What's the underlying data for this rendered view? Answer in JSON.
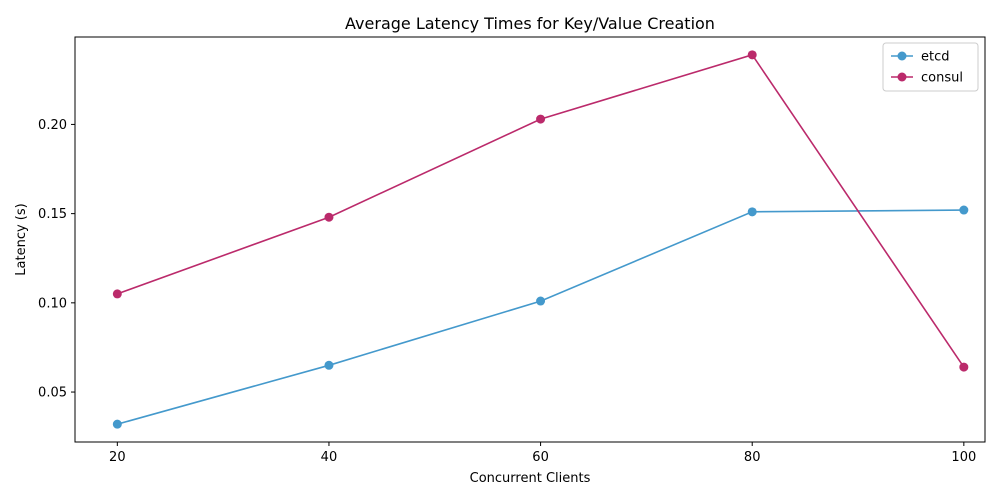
{
  "chart_data": {
    "type": "line",
    "title": "Average Latency Times for Key/Value Creation",
    "xlabel": "Concurrent Clients",
    "ylabel": "Latency (s)",
    "x": [
      20,
      40,
      60,
      80,
      100
    ],
    "xticks": [
      "20",
      "40",
      "60",
      "80",
      "100"
    ],
    "yticks": [
      "0.05",
      "0.10",
      "0.15",
      "0.20"
    ],
    "xlim": [
      16,
      102
    ],
    "ylim": [
      0.022,
      0.249
    ],
    "grid": false,
    "legend_position": "top-right",
    "series": [
      {
        "name": "etcd",
        "color": "#4499cc",
        "marker": "circle",
        "values": [
          0.032,
          0.065,
          0.101,
          0.151,
          0.152
        ]
      },
      {
        "name": "consul",
        "color": "#bb2a6b",
        "marker": "circle",
        "values": [
          0.105,
          0.148,
          0.203,
          0.239,
          0.064
        ]
      }
    ]
  }
}
